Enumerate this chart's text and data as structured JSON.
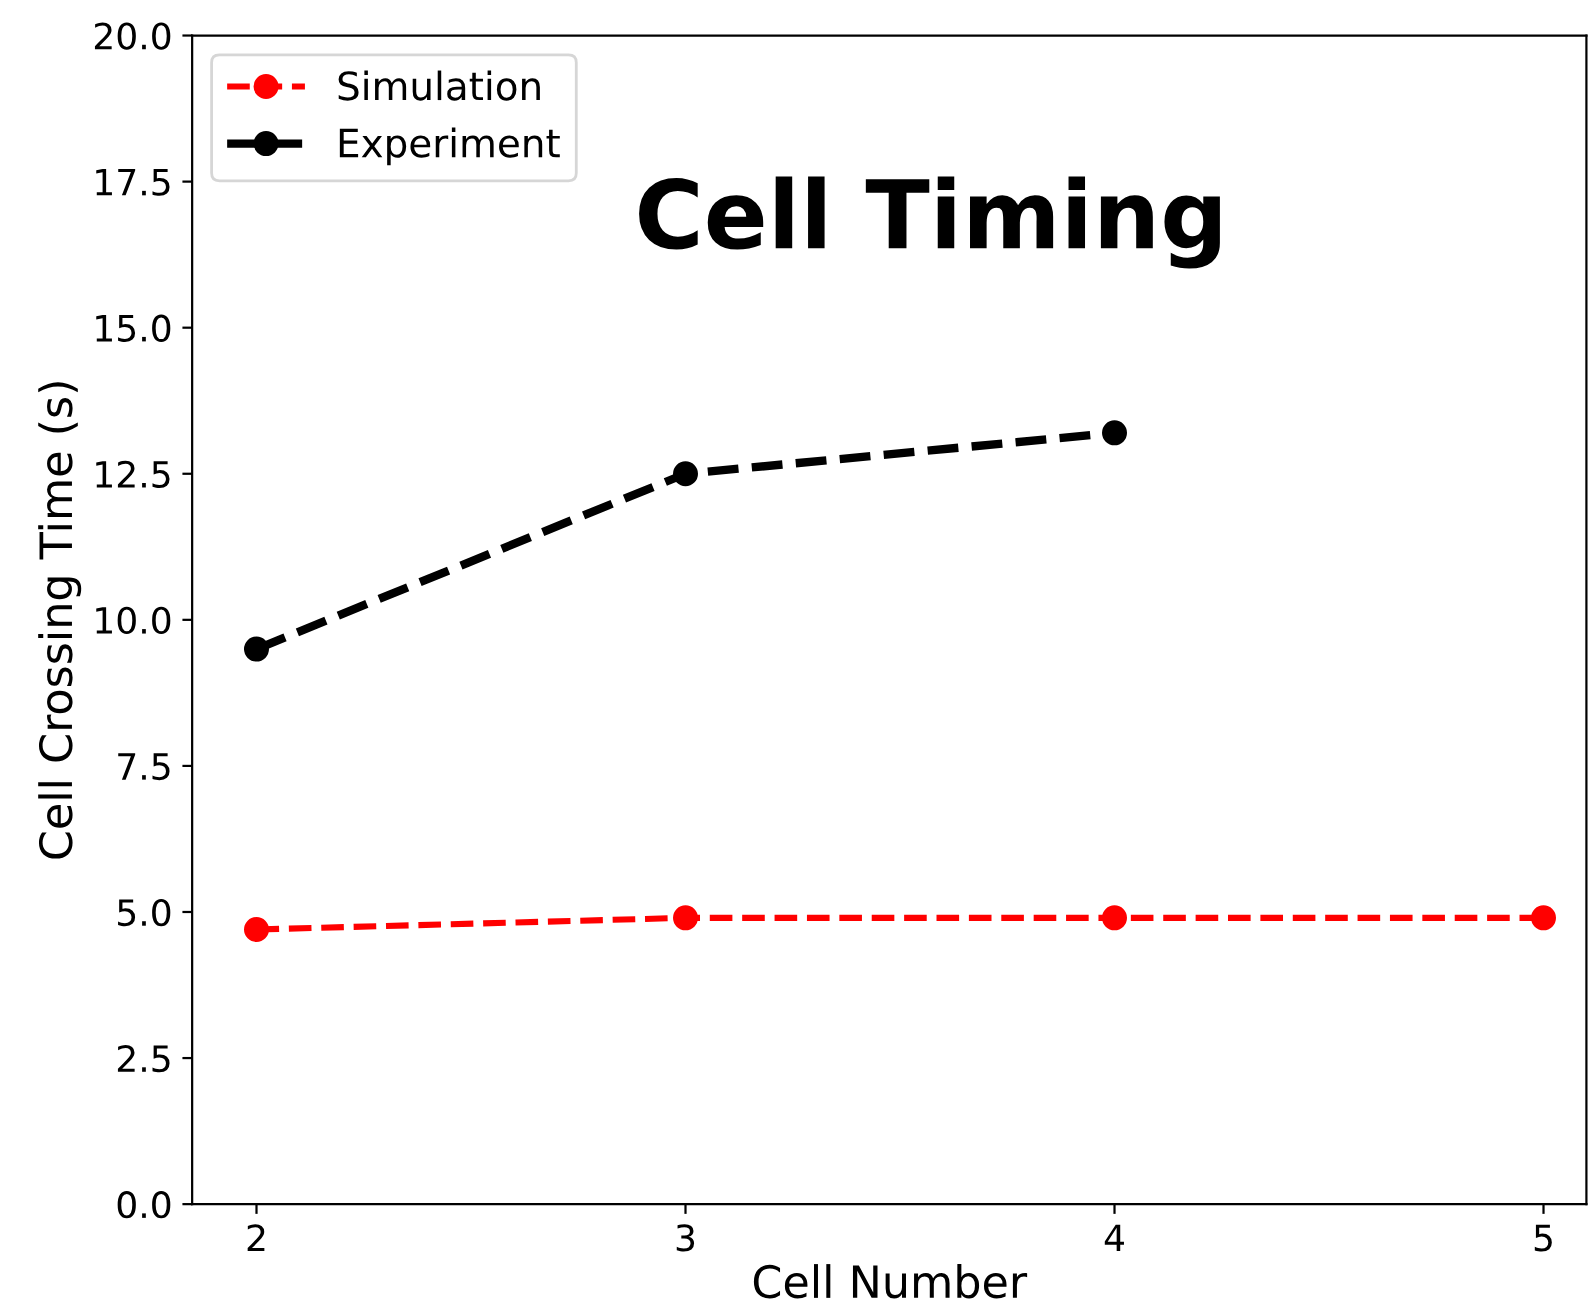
{
  "chart_data": {
    "type": "line",
    "title": "Cell Timing",
    "xlabel": "Cell Number",
    "ylabel": "Cell Crossing Time (s)",
    "x": [
      2,
      3,
      4,
      5
    ],
    "series": [
      {
        "name": "Simulation",
        "color": "#ff0000",
        "values": [
          4.7,
          4.9,
          4.9,
          4.9
        ]
      },
      {
        "name": "Experiment",
        "color": "#000000",
        "values": [
          9.5,
          12.5,
          13.2,
          null
        ]
      }
    ],
    "xlim": [
      1.85,
      5.1
    ],
    "xticks": [
      2,
      3,
      4,
      5
    ],
    "ylim": [
      0,
      20
    ],
    "yticks": [
      {
        "value": 0,
        "label": "0.0"
      },
      {
        "value": 2.5,
        "label": "2.5"
      },
      {
        "value": 5,
        "label": "5.0"
      },
      {
        "value": 7.5,
        "label": "7.5"
      },
      {
        "value": 10,
        "label": "10.0"
      },
      {
        "value": 12.5,
        "label": "12.5"
      },
      {
        "value": 15,
        "label": "15.0"
      },
      {
        "value": 17.5,
        "label": "17.5"
      },
      {
        "value": 20,
        "label": "20.0"
      }
    ],
    "grid": false,
    "legend": "top left",
    "marker": "circle",
    "line_style": "dashed"
  }
}
